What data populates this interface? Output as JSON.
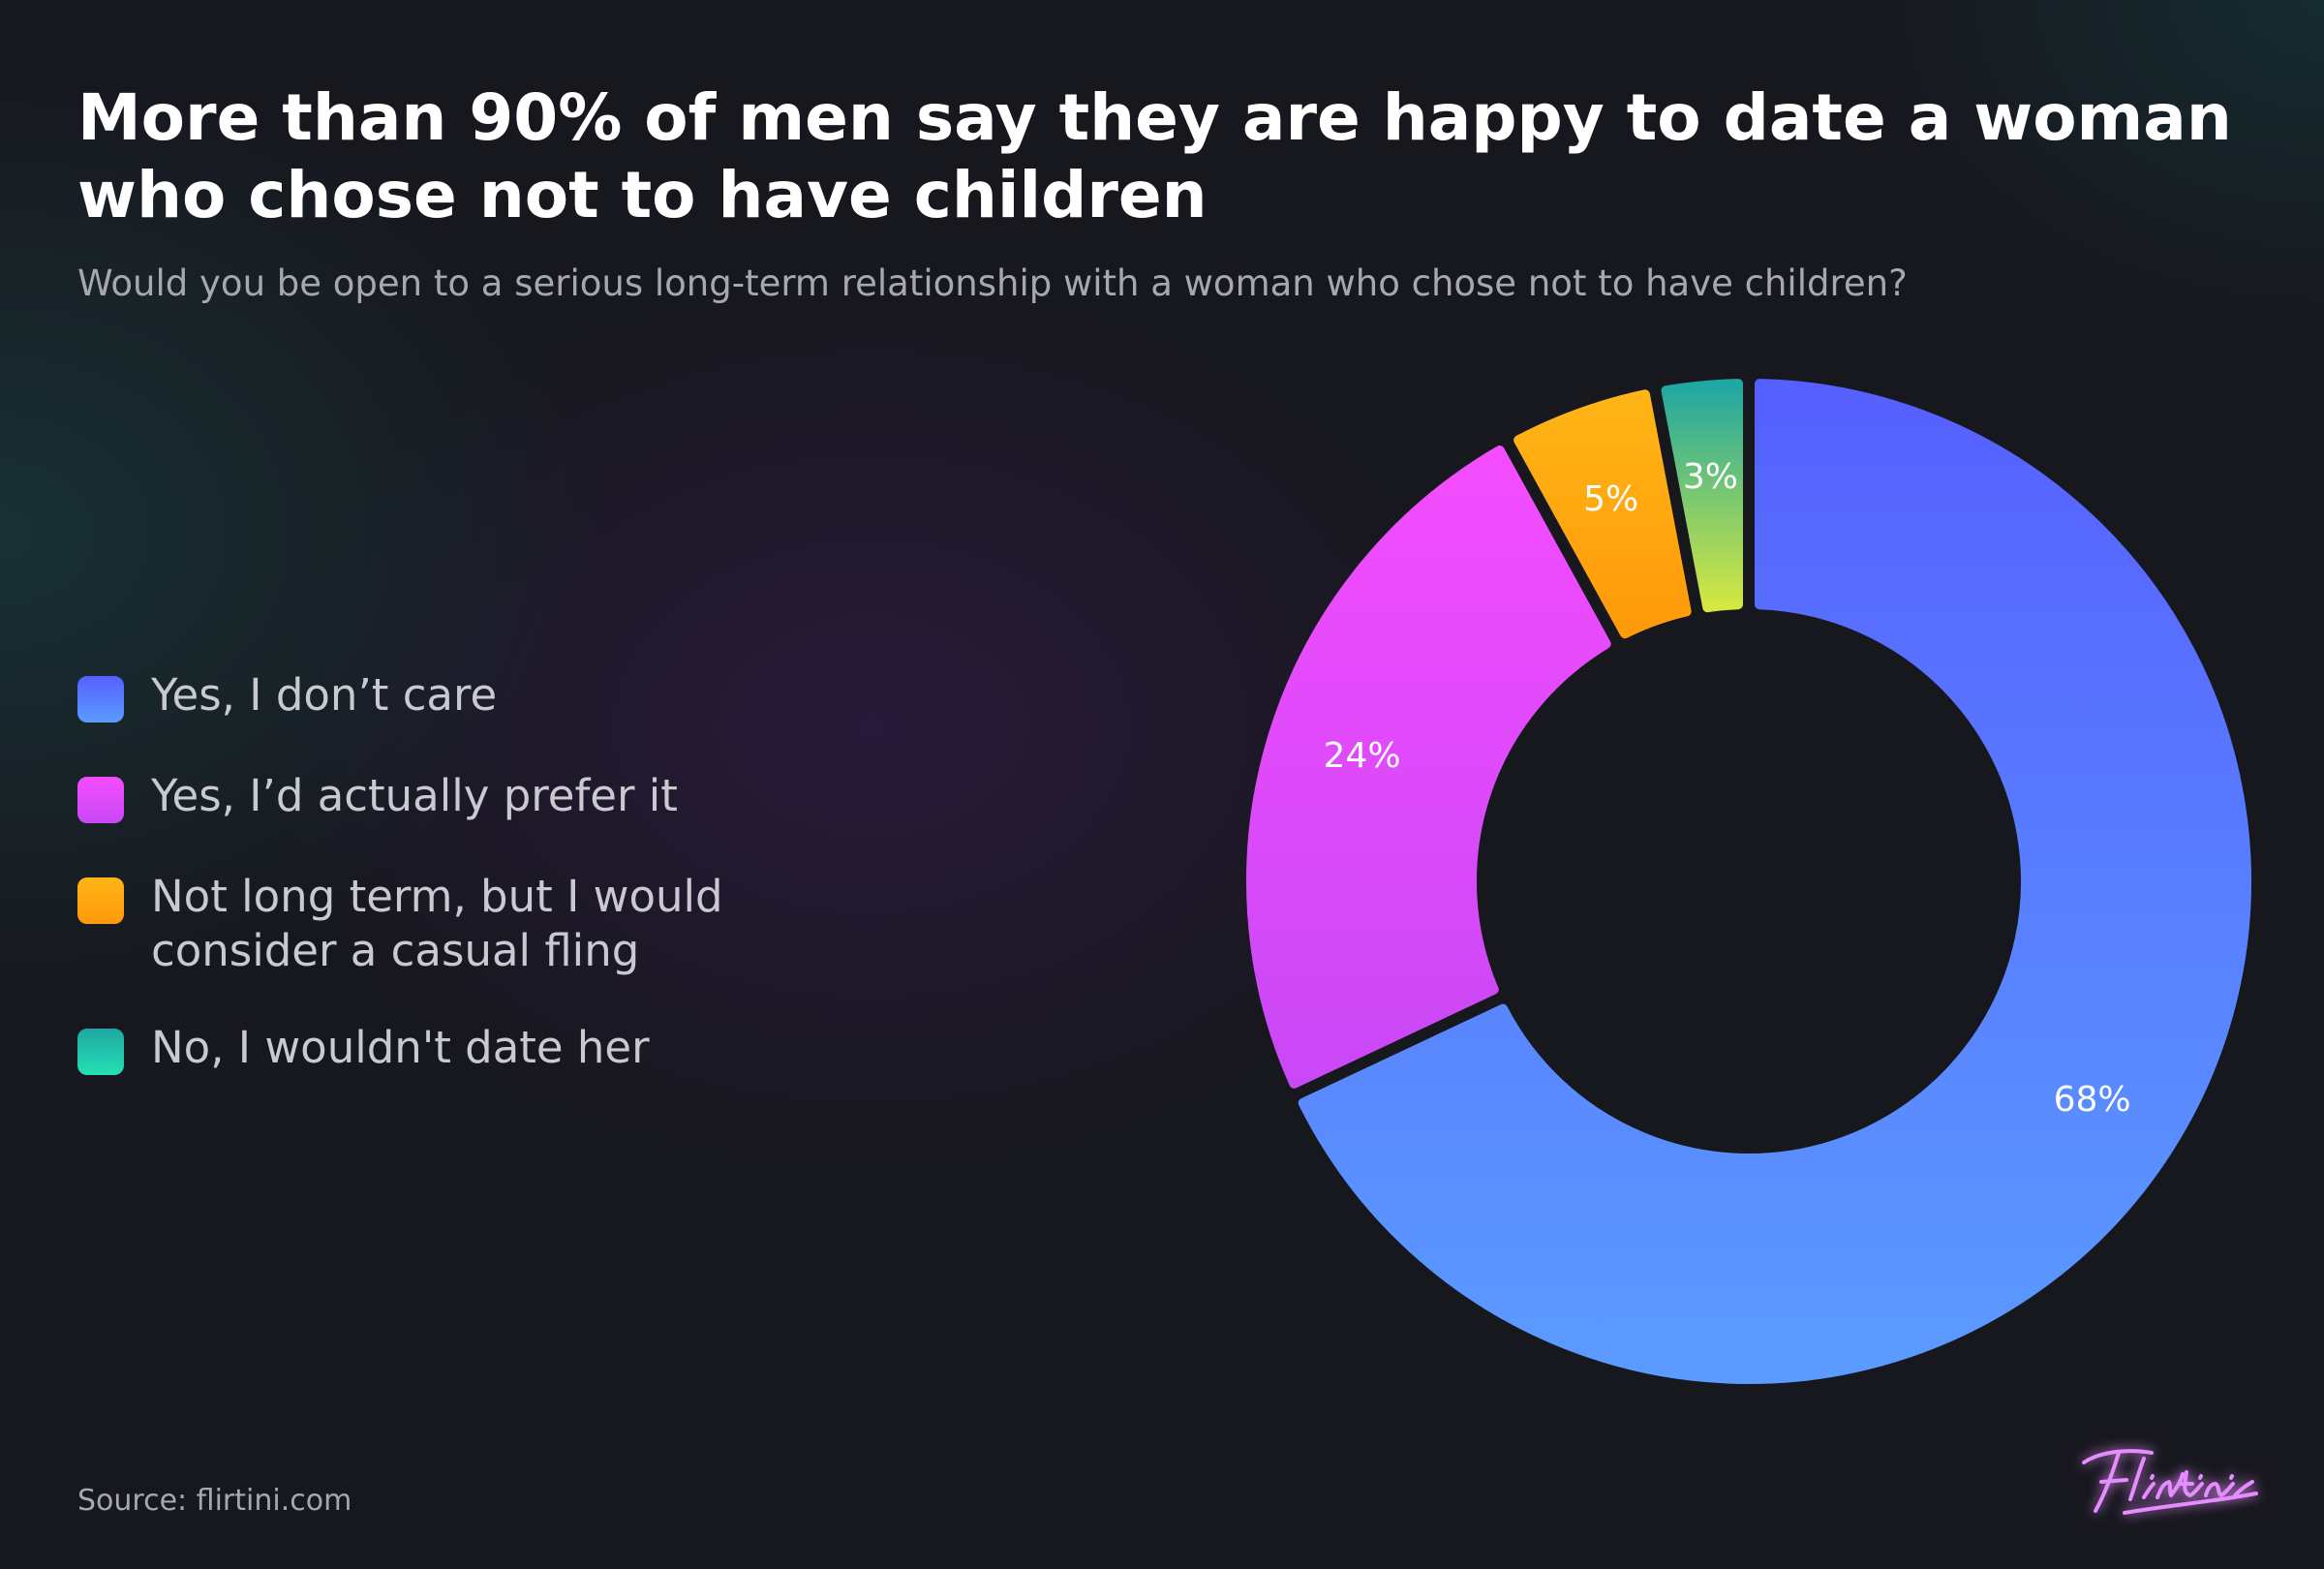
{
  "header": {
    "title": "More than 90% of men say they are happy to date a woman who chose not to have children",
    "subtitle": "Would you be open to a serious long-term relationship with a woman who chose not to have children?"
  },
  "chart_data": {
    "type": "pie",
    "style": "donut",
    "legend_position": "left",
    "categories": [
      "Yes, I don’t care",
      "Yes, I’d actually prefer it",
      "Not long term, but I would consider a casual fling",
      "No, I wouldn't date her"
    ],
    "values": [
      68,
      24,
      5,
      3
    ],
    "value_labels": [
      "68%",
      "24%",
      "5%",
      "3%"
    ],
    "unit": "%",
    "colors": [
      {
        "top": "#5660ff",
        "bottom": "#5b9bff"
      },
      {
        "top": "#f44cff",
        "bottom": "#c948f5"
      },
      {
        "top": "#ffb516",
        "bottom": "#ff9a0a"
      },
      {
        "top": "#1fa7a3",
        "bottom": "#d5e840"
      }
    ]
  },
  "legend": {
    "items": [
      {
        "label": "Yes, I don’t care"
      },
      {
        "label": "Yes, I’d actually prefer it"
      },
      {
        "label": "Not long term, but I would consider a casual fling"
      },
      {
        "label": "No, I wouldn't date her"
      }
    ]
  },
  "footer": {
    "source": "Source: flirtini.com",
    "logo_text": "Flirtini"
  }
}
